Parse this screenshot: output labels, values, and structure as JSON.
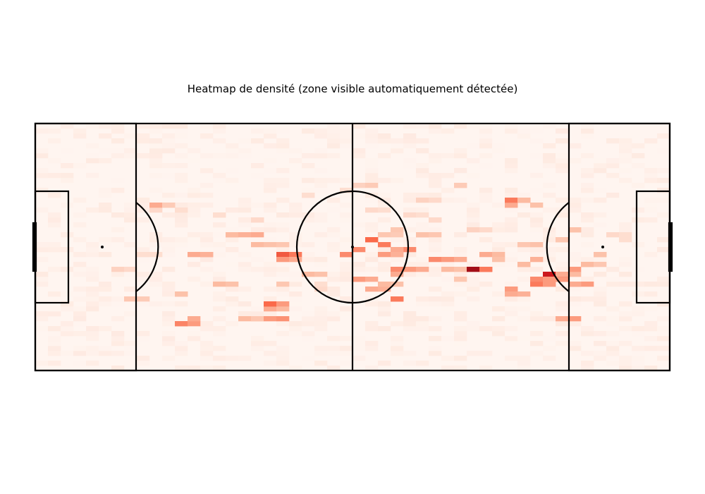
{
  "chart_data": {
    "type": "heatmap",
    "title": "Heatmap de densité (zone visible automatiquement détectée)",
    "xlabel": "",
    "ylabel": "",
    "xlim": [
      0,
      100
    ],
    "ylim": [
      0,
      100
    ],
    "grid": false,
    "legend": "none",
    "colormap": [
      "#fff5f0",
      "#fcbba1",
      "#fb6a4a",
      "#cb181d",
      "#67000d"
    ],
    "line_color": "#000000",
    "bins": [
      50,
      50
    ],
    "cells": [
      [
        18,
        65,
        0.12
      ],
      [
        18,
        66,
        0.08
      ],
      [
        19,
        66,
        0.25
      ],
      [
        19,
        67,
        0.3
      ],
      [
        20,
        66,
        0.22
      ],
      [
        20,
        67,
        0.18
      ],
      [
        25,
        46,
        0.3
      ],
      [
        26,
        46,
        0.35
      ],
      [
        27,
        46,
        0.28
      ],
      [
        22,
        31,
        0.3
      ],
      [
        23,
        31,
        0.22
      ],
      [
        29,
        34,
        0.25
      ],
      [
        30,
        34,
        0.22
      ],
      [
        22,
        18,
        0.4
      ],
      [
        23,
        18,
        0.42
      ],
      [
        24,
        19,
        0.35
      ],
      [
        25,
        20,
        0.3
      ],
      [
        33,
        20,
        0.25
      ],
      [
        34,
        20,
        0.22
      ],
      [
        35,
        21,
        0.2
      ],
      [
        37,
        20,
        0.35
      ],
      [
        38,
        20,
        0.38
      ],
      [
        37,
        24,
        0.3
      ],
      [
        38,
        24,
        0.25
      ],
      [
        36,
        27,
        0.55
      ],
      [
        37,
        27,
        0.5
      ],
      [
        38,
        27,
        0.35
      ],
      [
        30,
        55,
        0.3
      ],
      [
        31,
        55,
        0.25
      ],
      [
        33,
        55,
        0.28
      ],
      [
        34,
        55,
        0.3
      ],
      [
        35,
        51,
        0.25
      ],
      [
        36,
        51,
        0.22
      ],
      [
        38,
        50,
        0.2
      ],
      [
        39,
        46,
        0.55
      ],
      [
        40,
        46,
        0.45
      ],
      [
        39,
        45,
        0.35
      ],
      [
        40,
        45,
        0.3
      ],
      [
        39,
        35,
        0.2
      ],
      [
        43,
        38,
        0.25
      ],
      [
        44,
        38,
        0.22
      ],
      [
        48,
        46,
        0.55
      ],
      [
        49,
        46,
        0.4
      ],
      [
        50,
        48,
        0.4
      ],
      [
        52,
        52,
        0.45
      ],
      [
        53,
        52,
        0.5
      ],
      [
        54,
        50,
        0.45
      ],
      [
        57,
        48,
        0.55
      ],
      [
        58,
        48,
        0.45
      ],
      [
        59,
        49,
        0.4
      ],
      [
        57,
        49,
        0.35
      ],
      [
        58,
        49,
        0.3
      ],
      [
        56,
        40,
        0.35
      ],
      [
        57,
        40,
        0.4
      ],
      [
        58,
        39,
        0.3
      ],
      [
        59,
        40,
        0.35
      ],
      [
        60,
        40,
        0.3
      ],
      [
        55,
        46,
        0.35
      ],
      [
        56,
        46,
        0.3
      ],
      [
        58,
        46,
        0.28
      ],
      [
        50,
        36,
        0.4
      ],
      [
        51,
        37,
        0.35
      ],
      [
        52,
        37,
        0.3
      ],
      [
        53,
        33,
        0.3
      ],
      [
        54,
        33,
        0.28
      ],
      [
        55,
        34,
        0.25
      ],
      [
        56,
        34,
        0.22
      ],
      [
        56,
        29,
        0.55
      ],
      [
        57,
        29,
        0.45
      ],
      [
        55,
        54,
        0.2
      ],
      [
        56,
        54,
        0.18
      ],
      [
        57,
        56,
        0.2
      ],
      [
        60,
        54,
        0.25
      ],
      [
        61,
        54,
        0.22
      ],
      [
        63,
        55,
        0.2
      ],
      [
        63,
        45,
        0.4
      ],
      [
        64,
        45,
        0.35
      ],
      [
        66,
        44,
        0.3
      ],
      [
        65,
        41,
        0.25
      ],
      [
        66,
        41,
        0.22
      ],
      [
        66,
        37,
        0.2
      ],
      [
        69,
        41,
        0.85
      ],
      [
        70,
        41,
        0.55
      ],
      [
        70,
        40,
        0.45
      ],
      [
        71,
        46,
        0.3
      ],
      [
        72,
        46,
        0.25
      ],
      [
        73,
        45,
        0.22
      ],
      [
        74,
        32,
        0.4
      ],
      [
        75,
        32,
        0.35
      ],
      [
        75,
        31,
        0.3
      ],
      [
        76,
        31,
        0.28
      ],
      [
        74,
        67,
        0.35
      ],
      [
        75,
        67,
        0.3
      ],
      [
        75,
        68,
        0.45
      ],
      [
        76,
        68,
        0.4
      ],
      [
        77,
        68,
        0.25
      ],
      [
        78,
        67,
        0.22
      ],
      [
        76,
        42,
        0.3
      ],
      [
        77,
        43,
        0.25
      ],
      [
        78,
        45,
        0.28
      ],
      [
        77,
        50,
        0.2
      ],
      [
        79,
        50,
        0.22
      ],
      [
        81,
        36,
        0.55
      ],
      [
        82,
        36,
        0.5
      ],
      [
        81,
        37,
        0.4
      ],
      [
        82,
        37,
        0.35
      ],
      [
        81,
        39,
        0.75
      ],
      [
        82,
        39,
        0.7
      ],
      [
        82,
        38,
        0.55
      ],
      [
        79,
        35,
        0.45
      ],
      [
        80,
        35,
        0.4
      ],
      [
        80,
        34,
        0.35
      ],
      [
        79,
        36,
        0.4
      ],
      [
        80,
        36,
        0.35
      ],
      [
        83,
        39,
        0.3
      ],
      [
        84,
        39,
        0.25
      ],
      [
        84,
        40,
        0.35
      ],
      [
        85,
        34,
        0.4
      ],
      [
        86,
        34,
        0.35
      ],
      [
        85,
        35,
        0.3
      ],
      [
        86,
        43,
        0.3
      ],
      [
        87,
        43,
        0.25
      ],
      [
        83,
        20,
        0.3
      ],
      [
        84,
        20,
        0.35
      ],
      [
        82,
        52,
        0.25
      ],
      [
        83,
        52,
        0.2
      ],
      [
        84,
        58,
        0.25
      ],
      [
        85,
        58,
        0.22
      ],
      [
        88,
        47,
        0.28
      ],
      [
        89,
        47,
        0.22
      ],
      [
        88,
        42,
        0.2
      ],
      [
        91,
        55,
        0.12
      ],
      [
        92,
        55,
        0.1
      ],
      [
        93,
        52,
        0.1
      ],
      [
        66,
        74,
        0.2
      ],
      [
        67,
        74,
        0.18
      ],
      [
        51,
        74,
        0.15
      ],
      [
        52,
        74,
        0.18
      ],
      [
        42,
        71,
        0.12
      ],
      [
        43,
        71,
        0.1
      ],
      [
        48,
        73,
        0.12
      ],
      [
        49,
        73,
        0.1
      ],
      [
        61,
        68,
        0.15
      ],
      [
        62,
        68,
        0.12
      ],
      [
        44,
        33,
        0.12
      ],
      [
        45,
        35,
        0.1
      ],
      [
        62,
        60,
        0.15
      ],
      [
        63,
        60,
        0.12
      ],
      [
        69,
        56,
        0.15
      ],
      [
        70,
        56,
        0.12
      ],
      [
        59,
        63,
        0.12
      ],
      [
        60,
        63,
        0.1
      ],
      [
        53,
        64,
        0.12
      ],
      [
        54,
        64,
        0.1
      ],
      [
        34,
        60,
        0.15
      ],
      [
        35,
        60,
        0.12
      ],
      [
        28,
        63,
        0.12
      ],
      [
        29,
        63,
        0.1
      ],
      [
        22,
        65,
        0.12
      ],
      [
        23,
        65,
        0.1
      ],
      [
        17,
        46,
        0.1
      ],
      [
        18,
        46,
        0.1
      ],
      [
        13,
        40,
        0.15
      ],
      [
        14,
        40,
        0.12
      ],
      [
        15,
        29,
        0.2
      ],
      [
        16,
        29,
        0.18
      ]
    ]
  }
}
